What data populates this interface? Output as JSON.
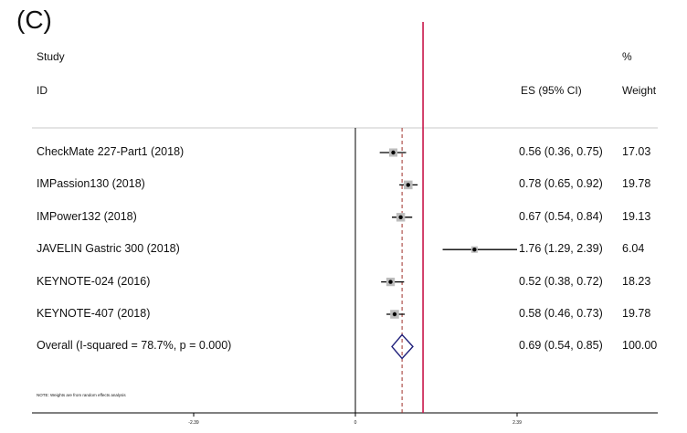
{
  "panel_label": "(C)",
  "header": {
    "study_line1": "Study",
    "study_line2": "ID",
    "es_label": "ES (95% CI)",
    "weight_line1": "%",
    "weight_line2": "Weight"
  },
  "note": "NOTE: Weights are from random effects analysis",
  "axis_ticks": [
    "-2.39",
    "0",
    "2.39"
  ],
  "colors": {
    "null_line": "#c8174a",
    "overall_dash": "#a0302a",
    "diamond": "#1f1f7a",
    "square": "#bdbdbd",
    "ci_line": "#000000"
  },
  "chart_data": {
    "type": "forest",
    "xlim": [
      -2.39,
      2.39
    ],
    "null_value": 1,
    "overall_value": 0.69,
    "studies": [
      {
        "name": "CheckMate 227-Part1 (2018)",
        "es": 0.56,
        "lo": 0.36,
        "hi": 0.75,
        "es_text": "0.56 (0.36, 0.75)",
        "weight": "17.03",
        "w": 17.03
      },
      {
        "name": "IMPassion130 (2018)",
        "es": 0.78,
        "lo": 0.65,
        "hi": 0.92,
        "es_text": "0.78 (0.65, 0.92)",
        "weight": "19.78",
        "w": 19.78
      },
      {
        "name": "IMPower132 (2018)",
        "es": 0.67,
        "lo": 0.54,
        "hi": 0.84,
        "es_text": "0.67 (0.54, 0.84)",
        "weight": "19.13",
        "w": 19.13
      },
      {
        "name": "JAVELIN Gastric 300 (2018)",
        "es": 1.76,
        "lo": 1.29,
        "hi": 2.39,
        "es_text": "1.76 (1.29, 2.39)",
        "weight": "6.04",
        "w": 6.04
      },
      {
        "name": "KEYNOTE-024 (2016)",
        "es": 0.52,
        "lo": 0.38,
        "hi": 0.72,
        "es_text": "0.52 (0.38, 0.72)",
        "weight": "18.23",
        "w": 18.23
      },
      {
        "name": "KEYNOTE-407 (2018)",
        "es": 0.58,
        "lo": 0.46,
        "hi": 0.73,
        "es_text": "0.58 (0.46, 0.73)",
        "weight": "19.78",
        "w": 19.78
      }
    ],
    "overall": {
      "name": "Overall  (I-squared = 78.7%, p = 0.000)",
      "es": 0.69,
      "lo": 0.54,
      "hi": 0.85,
      "es_text": "0.69 (0.54, 0.85)",
      "weight": "100.00"
    }
  }
}
